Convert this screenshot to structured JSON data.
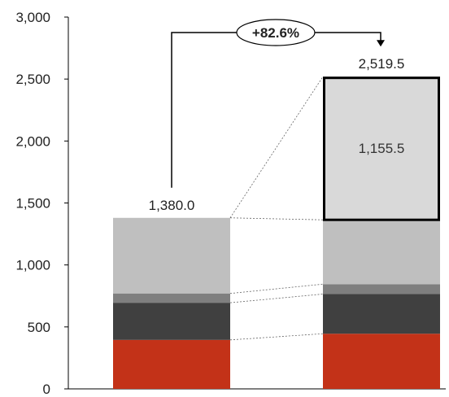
{
  "chart_data": {
    "type": "bar",
    "stacked": true,
    "categories": [
      "",
      ""
    ],
    "series": [
      {
        "values": [
          395,
          445
        ],
        "color": "#C33218"
      },
      {
        "values": [
          300,
          320
        ],
        "color": "#404040"
      },
      {
        "values": [
          75,
          80
        ],
        "color": "#7F7F7F"
      },
      {
        "values": [
          610,
          519
        ],
        "color": "#BFBFBF"
      },
      {
        "values": [
          0,
          1155.5
        ],
        "color": "#D9D9D9"
      }
    ],
    "totals": [
      1380.0,
      2519.5
    ],
    "total_labels": [
      "1,380.0",
      "2,519.5"
    ],
    "segment_labels": [
      "",
      "1,155.5"
    ],
    "growth_label": "+82.6%",
    "ylim": [
      0,
      3000
    ],
    "yticks": [
      0,
      500,
      1000,
      1500,
      2000,
      2500,
      3000
    ],
    "ytick_labels": [
      "0",
      "500",
      "1,000",
      "1,500",
      "2,000",
      "2,500",
      "3,000"
    ],
    "title": "",
    "xlabel": "",
    "ylabel": "",
    "grid": false,
    "legend": "none"
  }
}
